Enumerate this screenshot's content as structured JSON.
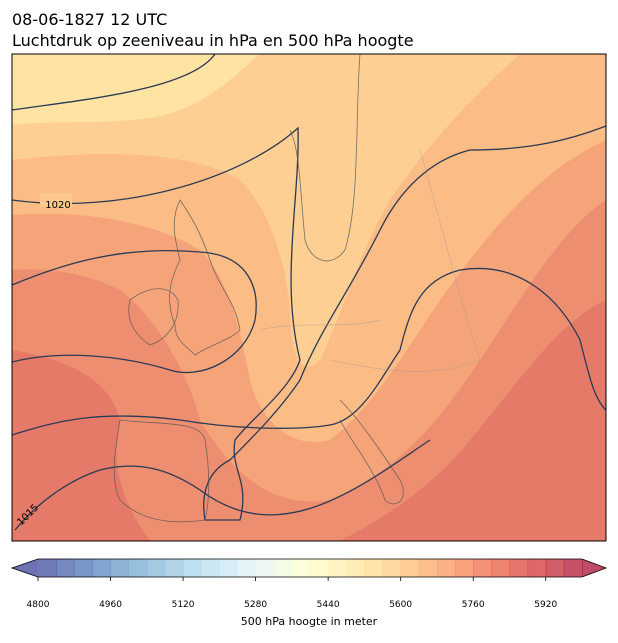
{
  "header": {
    "title": "08-06-1827 12 UTC",
    "subtitle": "Luchtdruk op zeeniveau in hPa en 500 hPa hoogte"
  },
  "map": {
    "isobar_labels": [
      1020,
      1015
    ]
  },
  "colorbar": {
    "label": "500 hPa hoogte in meter",
    "colormap": "RdYlBu_r",
    "range": [
      4800,
      6000
    ],
    "step": 40,
    "ticks": [
      4800,
      4960,
      5120,
      5280,
      5440,
      5600,
      5760,
      5920
    ],
    "extend": "both"
  }
}
